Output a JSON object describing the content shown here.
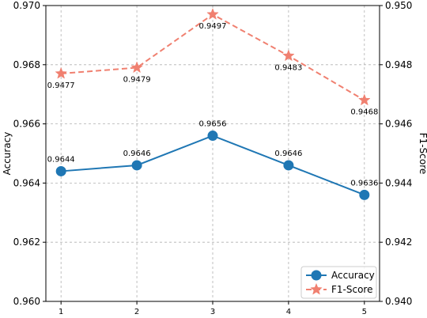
{
  "chart_data": {
    "type": "line",
    "title": "",
    "x": [
      1,
      2,
      3,
      4,
      5
    ],
    "x_tick_labels": [
      "1",
      "2",
      "3",
      "4",
      "5"
    ],
    "xlabel": "",
    "grid": true,
    "legend_position": "bottom-right",
    "y_left": {
      "label": "Accuracy",
      "lim": [
        0.96,
        0.97
      ],
      "ticks": [
        "0.960",
        "0.962",
        "0.964",
        "0.966",
        "0.968",
        "0.970"
      ]
    },
    "y_right": {
      "label": "F1-Score",
      "lim": [
        0.94,
        0.95
      ],
      "ticks": [
        "0.940",
        "0.942",
        "0.944",
        "0.946",
        "0.948",
        "0.950"
      ]
    },
    "series": [
      {
        "name": "Accuracy",
        "axis": "left",
        "values": [
          0.9644,
          0.9646,
          0.9656,
          0.9646,
          0.9636
        ],
        "labels": [
          "0.9644",
          "0.9646",
          "0.9656",
          "0.9646",
          "0.9636"
        ],
        "color": "#1f77b4",
        "marker": "circle",
        "line_style": "solid",
        "label_position": "above"
      },
      {
        "name": "F1-Score",
        "axis": "right",
        "values": [
          0.9477,
          0.9479,
          0.9497,
          0.9483,
          0.9468
        ],
        "labels": [
          "0.9477",
          "0.9479",
          "0.9497",
          "0.9483",
          "0.9468"
        ],
        "color": "#f08070",
        "marker": "star",
        "line_style": "dashed",
        "label_position": "below"
      }
    ]
  }
}
